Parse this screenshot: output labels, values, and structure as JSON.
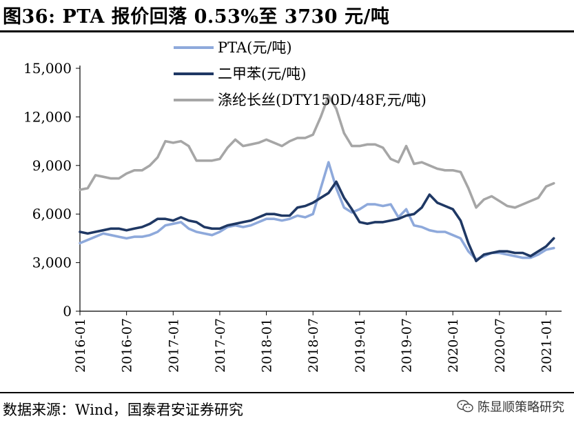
{
  "header": {
    "title": "图36: PTA 报价回落 0.53%至 3730 元/吨"
  },
  "footer": {
    "source": "数据来源：Wind，国泰君安证券研究",
    "watermark": "陈显顺策略研究",
    "watermark_icon": "wechat-icon"
  },
  "colors": {
    "pta": "#8EA9DB",
    "px": "#1F3864",
    "dty": "#A6A6A6"
  },
  "chart_data": {
    "type": "line",
    "title": "图36: PTA 报价回落 0.53%至 3730 元/吨",
    "xlabel": "",
    "ylabel": "",
    "ylim": [
      0,
      15000
    ],
    "yticks": [
      0,
      3000,
      6000,
      9000,
      12000,
      15000
    ],
    "ytick_labels": [
      "0",
      "3,000",
      "6,000",
      "9,000",
      "12,000",
      "15,000"
    ],
    "xlim": [
      "2016-01",
      "2021-03"
    ],
    "xtick_labels": [
      "2016-01",
      "2016-07",
      "2017-01",
      "2017-07",
      "2018-01",
      "2018-07",
      "2019-01",
      "2019-07",
      "2020-01",
      "2020-07",
      "2021-01"
    ],
    "legend_position": "top-center",
    "grid": false,
    "series": [
      {
        "name": "PTA(元/吨)",
        "color": "#8EA9DB",
        "points": [
          [
            "2016-01",
            4200
          ],
          [
            "2016-02",
            4400
          ],
          [
            "2016-03",
            4600
          ],
          [
            "2016-04",
            4800
          ],
          [
            "2016-05",
            4700
          ],
          [
            "2016-06",
            4600
          ],
          [
            "2016-07",
            4500
          ],
          [
            "2016-08",
            4600
          ],
          [
            "2016-09",
            4600
          ],
          [
            "2016-10",
            4700
          ],
          [
            "2016-11",
            4900
          ],
          [
            "2016-12",
            5300
          ],
          [
            "2017-01",
            5400
          ],
          [
            "2017-02",
            5500
          ],
          [
            "2017-03",
            5100
          ],
          [
            "2017-04",
            4900
          ],
          [
            "2017-05",
            4800
          ],
          [
            "2017-06",
            4700
          ],
          [
            "2017-07",
            4900
          ],
          [
            "2017-08",
            5200
          ],
          [
            "2017-09",
            5300
          ],
          [
            "2017-10",
            5200
          ],
          [
            "2017-11",
            5300
          ],
          [
            "2017-12",
            5500
          ],
          [
            "2018-01",
            5700
          ],
          [
            "2018-02",
            5700
          ],
          [
            "2018-03",
            5600
          ],
          [
            "2018-04",
            5700
          ],
          [
            "2018-05",
            5900
          ],
          [
            "2018-06",
            5800
          ],
          [
            "2018-07",
            6000
          ],
          [
            "2018-08",
            7600
          ],
          [
            "2018-09",
            9200
          ],
          [
            "2018-10",
            7600
          ],
          [
            "2018-11",
            6400
          ],
          [
            "2018-12",
            6100
          ],
          [
            "2019-01",
            6300
          ],
          [
            "2019-02",
            6600
          ],
          [
            "2019-03",
            6600
          ],
          [
            "2019-04",
            6500
          ],
          [
            "2019-05",
            6600
          ],
          [
            "2019-06",
            5800
          ],
          [
            "2019-07",
            6300
          ],
          [
            "2019-08",
            5300
          ],
          [
            "2019-09",
            5200
          ],
          [
            "2019-10",
            5000
          ],
          [
            "2019-11",
            4900
          ],
          [
            "2019-12",
            4900
          ],
          [
            "2020-01",
            4700
          ],
          [
            "2020-02",
            4500
          ],
          [
            "2020-03",
            3700
          ],
          [
            "2020-04",
            3200
          ],
          [
            "2020-05",
            3400
          ],
          [
            "2020-06",
            3600
          ],
          [
            "2020-07",
            3600
          ],
          [
            "2020-08",
            3500
          ],
          [
            "2020-09",
            3400
          ],
          [
            "2020-10",
            3300
          ],
          [
            "2020-11",
            3300
          ],
          [
            "2020-12",
            3500
          ],
          [
            "2021-01",
            3800
          ],
          [
            "2021-02",
            3900
          ]
        ]
      },
      {
        "name": "二甲苯(元/吨)",
        "color": "#1F3864",
        "points": [
          [
            "2016-01",
            4900
          ],
          [
            "2016-02",
            4800
          ],
          [
            "2016-03",
            4900
          ],
          [
            "2016-04",
            5000
          ],
          [
            "2016-05",
            5100
          ],
          [
            "2016-06",
            5100
          ],
          [
            "2016-07",
            5000
          ],
          [
            "2016-08",
            5100
          ],
          [
            "2016-09",
            5200
          ],
          [
            "2016-10",
            5400
          ],
          [
            "2016-11",
            5700
          ],
          [
            "2016-12",
            5700
          ],
          [
            "2017-01",
            5600
          ],
          [
            "2017-02",
            5800
          ],
          [
            "2017-03",
            5600
          ],
          [
            "2017-04",
            5500
          ],
          [
            "2017-05",
            5200
          ],
          [
            "2017-06",
            5100
          ],
          [
            "2017-07",
            5100
          ],
          [
            "2017-08",
            5300
          ],
          [
            "2017-09",
            5400
          ],
          [
            "2017-10",
            5500
          ],
          [
            "2017-11",
            5600
          ],
          [
            "2017-12",
            5800
          ],
          [
            "2018-01",
            6000
          ],
          [
            "2018-02",
            6000
          ],
          [
            "2018-03",
            5900
          ],
          [
            "2018-04",
            5900
          ],
          [
            "2018-05",
            6400
          ],
          [
            "2018-06",
            6500
          ],
          [
            "2018-07",
            6700
          ],
          [
            "2018-08",
            7000
          ],
          [
            "2018-09",
            7300
          ],
          [
            "2018-10",
            8000
          ],
          [
            "2018-11",
            7000
          ],
          [
            "2018-12",
            6300
          ],
          [
            "2019-01",
            5500
          ],
          [
            "2019-02",
            5400
          ],
          [
            "2019-03",
            5500
          ],
          [
            "2019-04",
            5500
          ],
          [
            "2019-05",
            5600
          ],
          [
            "2019-06",
            5700
          ],
          [
            "2019-07",
            5900
          ],
          [
            "2019-08",
            6000
          ],
          [
            "2019-09",
            6400
          ],
          [
            "2019-10",
            7200
          ],
          [
            "2019-11",
            6700
          ],
          [
            "2019-12",
            6500
          ],
          [
            "2020-01",
            6300
          ],
          [
            "2020-02",
            5600
          ],
          [
            "2020-03",
            4200
          ],
          [
            "2020-04",
            3100
          ],
          [
            "2020-05",
            3500
          ],
          [
            "2020-06",
            3600
          ],
          [
            "2020-07",
            3700
          ],
          [
            "2020-08",
            3700
          ],
          [
            "2020-09",
            3600
          ],
          [
            "2020-10",
            3600
          ],
          [
            "2020-11",
            3400
          ],
          [
            "2020-12",
            3700
          ],
          [
            "2021-01",
            4000
          ],
          [
            "2021-02",
            4500
          ]
        ]
      },
      {
        "name": "涤纶长丝(DTY150D/48F,元/吨)",
        "color": "#A6A6A6",
        "points": [
          [
            "2016-01",
            7500
          ],
          [
            "2016-02",
            7600
          ],
          [
            "2016-03",
            8400
          ],
          [
            "2016-04",
            8300
          ],
          [
            "2016-05",
            8200
          ],
          [
            "2016-06",
            8200
          ],
          [
            "2016-07",
            8500
          ],
          [
            "2016-08",
            8700
          ],
          [
            "2016-09",
            8700
          ],
          [
            "2016-10",
            9000
          ],
          [
            "2016-11",
            9500
          ],
          [
            "2016-12",
            10500
          ],
          [
            "2017-01",
            10400
          ],
          [
            "2017-02",
            10500
          ],
          [
            "2017-03",
            10200
          ],
          [
            "2017-04",
            9300
          ],
          [
            "2017-05",
            9300
          ],
          [
            "2017-06",
            9300
          ],
          [
            "2017-07",
            9400
          ],
          [
            "2017-08",
            10100
          ],
          [
            "2017-09",
            10600
          ],
          [
            "2017-10",
            10200
          ],
          [
            "2017-11",
            10300
          ],
          [
            "2017-12",
            10400
          ],
          [
            "2018-01",
            10600
          ],
          [
            "2018-02",
            10400
          ],
          [
            "2018-03",
            10200
          ],
          [
            "2018-04",
            10500
          ],
          [
            "2018-05",
            10700
          ],
          [
            "2018-06",
            10700
          ],
          [
            "2018-07",
            10900
          ],
          [
            "2018-08",
            12000
          ],
          [
            "2018-09",
            13300
          ],
          [
            "2018-10",
            12500
          ],
          [
            "2018-11",
            11000
          ],
          [
            "2018-12",
            10200
          ],
          [
            "2019-01",
            10200
          ],
          [
            "2019-02",
            10300
          ],
          [
            "2019-03",
            10300
          ],
          [
            "2019-04",
            10100
          ],
          [
            "2019-05",
            9400
          ],
          [
            "2019-06",
            9200
          ],
          [
            "2019-07",
            10200
          ],
          [
            "2019-08",
            9100
          ],
          [
            "2019-09",
            9200
          ],
          [
            "2019-10",
            9000
          ],
          [
            "2019-11",
            8800
          ],
          [
            "2019-12",
            8700
          ],
          [
            "2020-01",
            8700
          ],
          [
            "2020-02",
            8600
          ],
          [
            "2020-03",
            7600
          ],
          [
            "2020-04",
            6400
          ],
          [
            "2020-05",
            6900
          ],
          [
            "2020-06",
            7100
          ],
          [
            "2020-07",
            6800
          ],
          [
            "2020-08",
            6500
          ],
          [
            "2020-09",
            6400
          ],
          [
            "2020-10",
            6600
          ],
          [
            "2020-11",
            6800
          ],
          [
            "2020-12",
            7000
          ],
          [
            "2021-01",
            7700
          ],
          [
            "2021-02",
            7900
          ]
        ]
      }
    ]
  }
}
